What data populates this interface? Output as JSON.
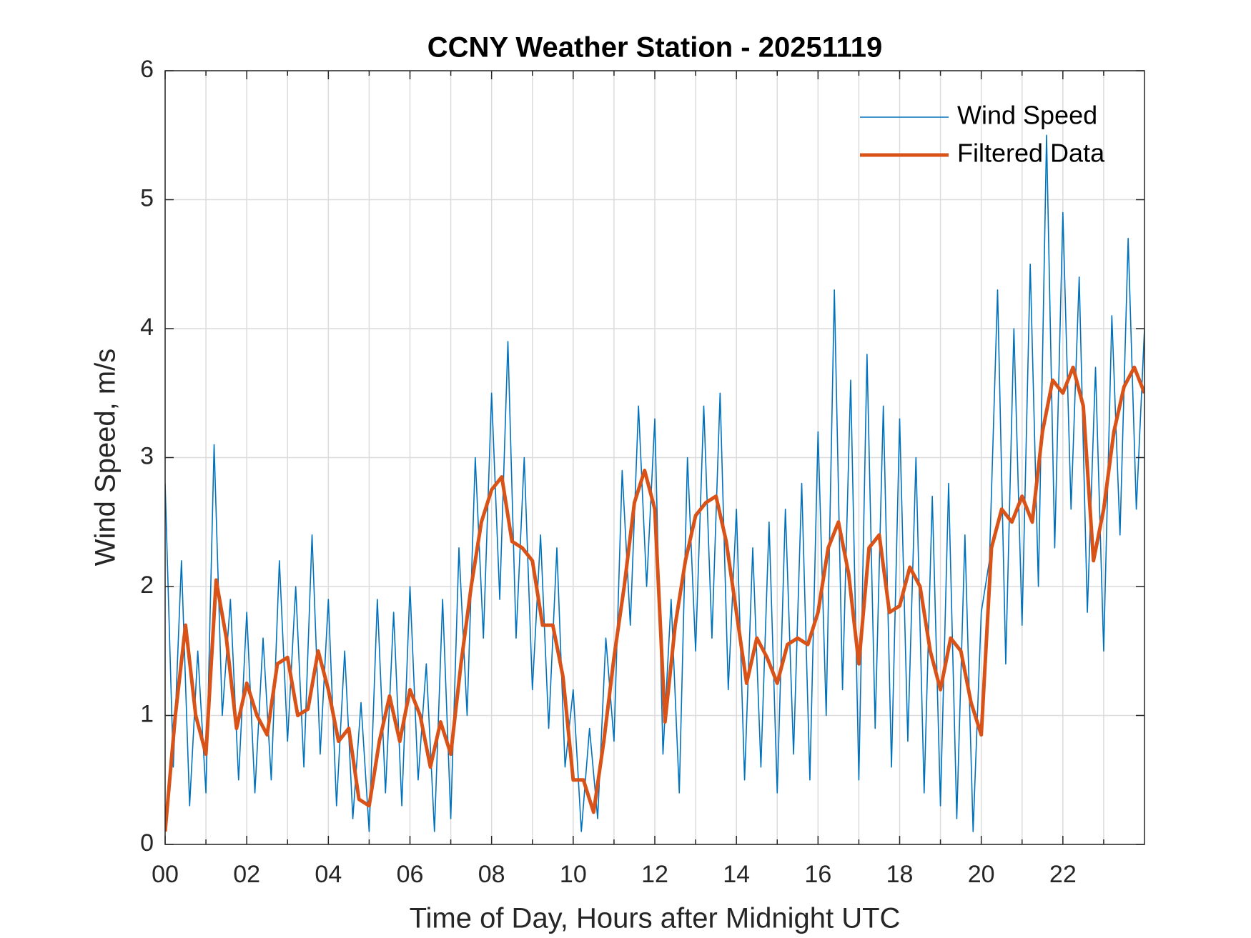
{
  "chart_data": {
    "type": "line",
    "title": "CCNY Weather Station - 20251119",
    "x_label": "Time of Day, Hours after Midnight UTC",
    "y_label": "Wind Speed, m/s",
    "xlim": [
      0,
      24
    ],
    "ylim": [
      0,
      6
    ],
    "xticks": [
      {
        "value": 0,
        "label": "00"
      },
      {
        "value": 2,
        "label": "02"
      },
      {
        "value": 4,
        "label": "04"
      },
      {
        "value": 6,
        "label": "06"
      },
      {
        "value": 8,
        "label": "08"
      },
      {
        "value": 10,
        "label": "10"
      },
      {
        "value": 12,
        "label": "12"
      },
      {
        "value": 14,
        "label": "14"
      },
      {
        "value": 16,
        "label": "16"
      },
      {
        "value": 18,
        "label": "18"
      },
      {
        "value": 20,
        "label": "20"
      },
      {
        "value": 22,
        "label": "22"
      }
    ],
    "xminorticks": [
      1,
      3,
      5,
      7,
      9,
      11,
      13,
      15,
      17,
      19,
      21,
      23
    ],
    "yticks": [
      0,
      1,
      2,
      3,
      4,
      5,
      6
    ],
    "grid": true,
    "legend": "northeast",
    "series": [
      {
        "name": "Wind Speed",
        "color": "#0072BD",
        "x": [
          0,
          0.2,
          0.4,
          0.6,
          0.8,
          1,
          1.2,
          1.4,
          1.6,
          1.8,
          2,
          2.2,
          2.4,
          2.6,
          2.8,
          3,
          3.2,
          3.4,
          3.6,
          3.8,
          4,
          4.2,
          4.4,
          4.6,
          4.8,
          5,
          5.2,
          5.4,
          5.6,
          5.8,
          6,
          6.2,
          6.4,
          6.6,
          6.8,
          7,
          7.2,
          7.4,
          7.6,
          7.8,
          8,
          8.2,
          8.4,
          8.6,
          8.8,
          9,
          9.2,
          9.4,
          9.6,
          9.8,
          10,
          10.2,
          10.4,
          10.6,
          10.8,
          11,
          11.2,
          11.4,
          11.6,
          11.8,
          12,
          12.2,
          12.4,
          12.6,
          12.8,
          13,
          13.2,
          13.4,
          13.6,
          13.8,
          14,
          14.2,
          14.4,
          14.6,
          14.8,
          15,
          15.2,
          15.4,
          15.6,
          15.8,
          16,
          16.2,
          16.4,
          16.6,
          16.8,
          17,
          17.2,
          17.4,
          17.6,
          17.8,
          18,
          18.2,
          18.4,
          18.6,
          18.8,
          19,
          19.2,
          19.4,
          19.6,
          19.8,
          20,
          20.2,
          20.4,
          20.6,
          20.8,
          21,
          21.2,
          21.4,
          21.6,
          21.8,
          22,
          22.2,
          22.4,
          22.6,
          22.8,
          23,
          23.2,
          23.4,
          23.6,
          23.8,
          24
        ],
        "values": [
          2.8,
          0.6,
          2.2,
          0.3,
          1.5,
          0.4,
          3.1,
          1.0,
          1.9,
          0.5,
          1.8,
          0.4,
          1.6,
          0.5,
          2.2,
          0.8,
          2.0,
          0.6,
          2.4,
          0.7,
          1.9,
          0.3,
          1.5,
          0.2,
          1.1,
          0.1,
          1.9,
          0.4,
          1.8,
          0.3,
          2.0,
          0.5,
          1.4,
          0.1,
          1.9,
          0.2,
          2.3,
          1.0,
          3.0,
          1.6,
          3.5,
          1.9,
          3.9,
          1.6,
          3.0,
          1.2,
          2.4,
          0.9,
          2.3,
          0.6,
          1.2,
          0.1,
          0.9,
          0.2,
          1.6,
          0.8,
          2.9,
          1.7,
          3.4,
          2.0,
          3.3,
          0.7,
          1.9,
          0.4,
          3.0,
          1.5,
          3.4,
          1.6,
          3.5,
          1.2,
          2.6,
          0.5,
          2.3,
          0.6,
          2.5,
          0.4,
          2.6,
          0.7,
          2.8,
          0.5,
          3.2,
          1.0,
          4.3,
          1.2,
          3.6,
          0.5,
          3.8,
          0.9,
          3.4,
          0.6,
          3.3,
          0.8,
          3.0,
          0.4,
          2.7,
          0.3,
          2.8,
          0.2,
          2.4,
          0.1,
          1.8,
          2.2,
          4.3,
          1.4,
          4.0,
          1.7,
          4.5,
          2.0,
          5.5,
          2.3,
          4.9,
          2.6,
          4.4,
          1.8,
          3.7,
          1.5,
          4.1,
          2.4,
          4.7,
          2.6,
          4.0
        ]
      },
      {
        "name": "Filtered Data",
        "color": "#D95319",
        "x": [
          0,
          0.25,
          0.5,
          0.75,
          1,
          1.25,
          1.5,
          1.75,
          2,
          2.25,
          2.5,
          2.75,
          3,
          3.25,
          3.5,
          3.75,
          4,
          4.25,
          4.5,
          4.75,
          5,
          5.25,
          5.5,
          5.75,
          6,
          6.25,
          6.5,
          6.75,
          7,
          7.25,
          7.5,
          7.75,
          8,
          8.25,
          8.5,
          8.75,
          9,
          9.25,
          9.5,
          9.75,
          10,
          10.25,
          10.5,
          10.75,
          11,
          11.25,
          11.5,
          11.75,
          12,
          12.25,
          12.5,
          12.75,
          13,
          13.25,
          13.5,
          13.75,
          14,
          14.25,
          14.5,
          14.75,
          15,
          15.25,
          15.5,
          15.75,
          16,
          16.25,
          16.5,
          16.75,
          17,
          17.25,
          17.5,
          17.75,
          18,
          18.25,
          18.5,
          18.75,
          19,
          19.25,
          19.5,
          19.75,
          20,
          20.25,
          20.5,
          20.75,
          21,
          21.25,
          21.5,
          21.75,
          22,
          22.25,
          22.5,
          22.75,
          23,
          23.25,
          23.5,
          23.75,
          24
        ],
        "values": [
          0.1,
          1.0,
          1.7,
          1.0,
          0.7,
          2.05,
          1.6,
          0.9,
          1.25,
          1.0,
          0.85,
          1.4,
          1.45,
          1.0,
          1.05,
          1.5,
          1.2,
          0.8,
          0.9,
          0.35,
          0.3,
          0.8,
          1.15,
          0.8,
          1.2,
          1.0,
          0.6,
          0.95,
          0.7,
          1.4,
          2.0,
          2.5,
          2.75,
          2.85,
          2.35,
          2.3,
          2.2,
          1.7,
          1.7,
          1.3,
          0.5,
          0.5,
          0.25,
          0.8,
          1.45,
          2.0,
          2.65,
          2.9,
          2.6,
          0.95,
          1.7,
          2.2,
          2.55,
          2.65,
          2.7,
          2.35,
          1.8,
          1.25,
          1.6,
          1.45,
          1.25,
          1.55,
          1.6,
          1.55,
          1.8,
          2.3,
          2.5,
          2.1,
          1.4,
          2.3,
          2.4,
          1.8,
          1.85,
          2.15,
          2.0,
          1.5,
          1.2,
          1.6,
          1.5,
          1.1,
          0.85,
          2.3,
          2.6,
          2.5,
          2.7,
          2.5,
          3.2,
          3.6,
          3.5,
          3.7,
          3.4,
          2.2,
          2.6,
          3.2,
          3.55,
          3.7,
          3.5
        ]
      }
    ]
  }
}
